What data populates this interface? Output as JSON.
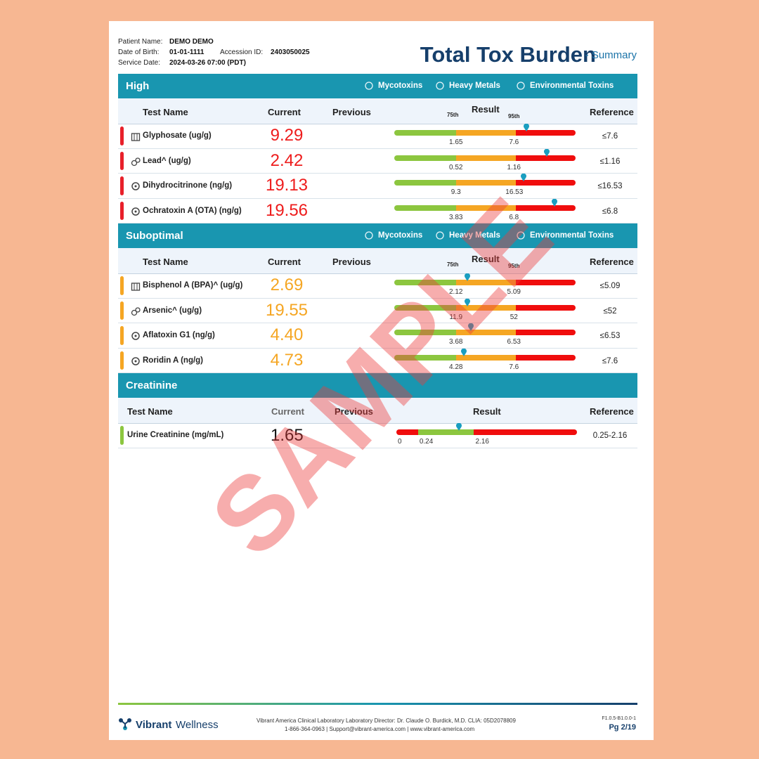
{
  "header": {
    "fields": [
      {
        "label": "Patient Name:",
        "value": "DEMO DEMO"
      },
      {
        "label": "Date of Birth:",
        "value": "01-01-1111"
      },
      {
        "label": "Accession ID:",
        "value": "2403050025"
      },
      {
        "label": "Service Date:",
        "value": "2024-03-26 07:00 (PDT)"
      }
    ],
    "title": "Total Tox Burden",
    "subtitle": "- Summary"
  },
  "sections": [
    {
      "title": "High",
      "categories": [
        "Mycotoxins",
        "Heavy Metals",
        "Environmental Toxins"
      ],
      "columns": {
        "name": "Test Name",
        "current": "Current",
        "previous": "Previous",
        "result": "Result",
        "reference": "Reference",
        "p75": "75th",
        "p95": "95th"
      },
      "rows": [
        {
          "name": "Glyphosate (ug/g)",
          "current": "9.29",
          "thresholds": [
            "1.65",
            "7.6"
          ],
          "reference": "≤7.6"
        },
        {
          "name": "Lead^ (ug/g)",
          "current": "2.42",
          "thresholds": [
            "0.52",
            "1.16"
          ],
          "reference": "≤1.16"
        },
        {
          "name": "Dihydrocitrinone (ng/g)",
          "current": "19.13",
          "thresholds": [
            "9.3",
            "16.53"
          ],
          "reference": "≤16.53"
        },
        {
          "name": "Ochratoxin A (OTA) (ng/g)",
          "current": "19.56",
          "thresholds": [
            "3.83",
            "6.8"
          ],
          "reference": "≤6.8"
        }
      ]
    },
    {
      "title": "Suboptimal",
      "categories": [
        "Mycotoxins",
        "Heavy Metals",
        "Environmental Toxins"
      ],
      "columns": {
        "name": "Test Name",
        "current": "Current",
        "previous": "Previous",
        "result": "Result",
        "reference": "Reference",
        "p75": "75th",
        "p95": "95th"
      },
      "rows": [
        {
          "name": "Bisphenol A (BPA)^ (ug/g)",
          "current": "2.69",
          "thresholds": [
            "2.12",
            "5.09"
          ],
          "reference": "≤5.09"
        },
        {
          "name": "Arsenic^ (ug/g)",
          "current": "19.55",
          "thresholds": [
            "11.9",
            "52"
          ],
          "reference": "≤52"
        },
        {
          "name": "Aflatoxin G1 (ng/g)",
          "current": "4.40",
          "thresholds": [
            "3.68",
            "6.53"
          ],
          "reference": "≤6.53"
        },
        {
          "name": "Roridin A (ng/g)",
          "current": "4.73",
          "thresholds": [
            "4.28",
            "7.6"
          ],
          "reference": "≤7.6"
        }
      ]
    },
    {
      "title": "Creatinine",
      "columns": {
        "name": "Test Name",
        "current": "Current",
        "previous": "Previous",
        "result": "Result",
        "reference": "Reference"
      },
      "rows": [
        {
          "name": "Urine Creatinine (mg/mL)",
          "current": "1.65",
          "thresholds": [
            "0",
            "0.24",
            "2.16"
          ],
          "reference": "0.25-2.16"
        }
      ]
    }
  ],
  "watermark": "SAMPLE",
  "footer": {
    "brand_a": "Vibrant",
    "brand_b": "Wellness",
    "line1": "Vibrant America Clinical Laboratory Laboratory Director: Dr. Claude O. Burdick, M.D. CLIA: 05D2078809",
    "line2": "1-866-364-0963 | Support@vibrant-america.com | www.vibrant-america.com",
    "version": "F1.0.5-B1.0.0-1",
    "page": "Pg 2/19"
  }
}
